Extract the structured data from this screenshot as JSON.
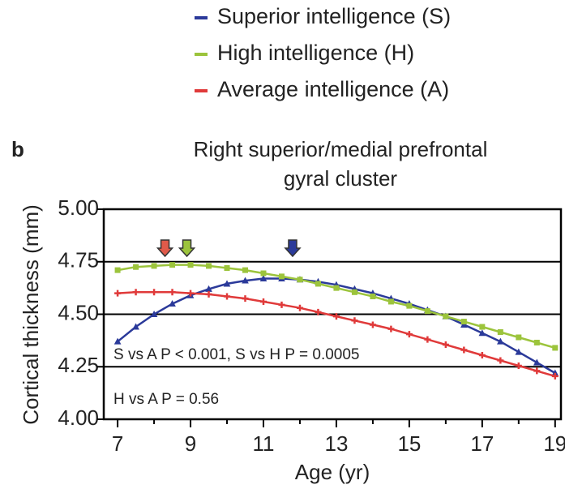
{
  "chart_data": {
    "type": "line",
    "panel_label": "b",
    "title": [
      "Right superior/medial prefrontal",
      "gyral cluster"
    ],
    "x_label": "Age (yr)",
    "y_label": "Cortical thickness (mm)",
    "x": [
      7,
      7.5,
      8,
      8.5,
      9,
      9.5,
      10,
      10.5,
      11,
      11.5,
      12,
      12.5,
      13,
      13.5,
      14,
      14.5,
      15,
      15.5,
      16,
      16.5,
      17,
      17.5,
      18,
      18.5,
      19
    ],
    "series": [
      {
        "name": "Superior intelligence (S)",
        "color": "#2b3a9a",
        "marker": "triangle",
        "values": [
          4.37,
          4.44,
          4.5,
          4.55,
          4.59,
          4.62,
          4.645,
          4.66,
          4.67,
          4.67,
          4.665,
          4.655,
          4.64,
          4.62,
          4.6,
          4.575,
          4.55,
          4.52,
          4.49,
          4.45,
          4.41,
          4.37,
          4.32,
          4.27,
          4.22
        ]
      },
      {
        "name": "High intelligence (H)",
        "color": "#9cc43c",
        "marker": "square",
        "values": [
          4.71,
          4.725,
          4.73,
          4.735,
          4.735,
          4.73,
          4.72,
          4.71,
          4.695,
          4.68,
          4.665,
          4.645,
          4.625,
          4.605,
          4.585,
          4.56,
          4.54,
          4.515,
          4.49,
          4.465,
          4.44,
          4.415,
          4.39,
          4.365,
          4.34
        ]
      },
      {
        "name": "Average intelligence (A)",
        "color": "#e03a3a",
        "marker": "plus",
        "values": [
          4.6,
          4.605,
          4.605,
          4.605,
          4.6,
          4.595,
          4.585,
          4.575,
          4.56,
          4.545,
          4.53,
          4.51,
          4.49,
          4.47,
          4.45,
          4.43,
          4.405,
          4.38,
          4.355,
          4.33,
          4.305,
          4.28,
          4.255,
          4.23,
          4.205
        ]
      }
    ],
    "peak_arrows": [
      {
        "x": 8.3,
        "color": "#e05a4a"
      },
      {
        "x": 8.9,
        "color": "#9cc43c"
      },
      {
        "x": 11.8,
        "color": "#2b3a9a"
      }
    ],
    "annotations": [
      "S vs A P < 0.001, S vs H P = 0.0005",
      "H vs A P = 0.56"
    ],
    "xlim": [
      6.62,
      19.16
    ],
    "ylim": [
      4.0,
      5.0
    ],
    "xticks": [
      7,
      9,
      11,
      13,
      15,
      17,
      19
    ],
    "xminor_ticks": [
      8,
      10,
      12,
      14,
      16,
      18
    ],
    "yticks": [
      {
        "value": 4,
        "label": "4.00"
      },
      4.25,
      {
        "value": 4.5,
        "label": "4.50"
      },
      4.75,
      {
        "value": 5,
        "label": "5.00"
      }
    ],
    "grid": true
  }
}
